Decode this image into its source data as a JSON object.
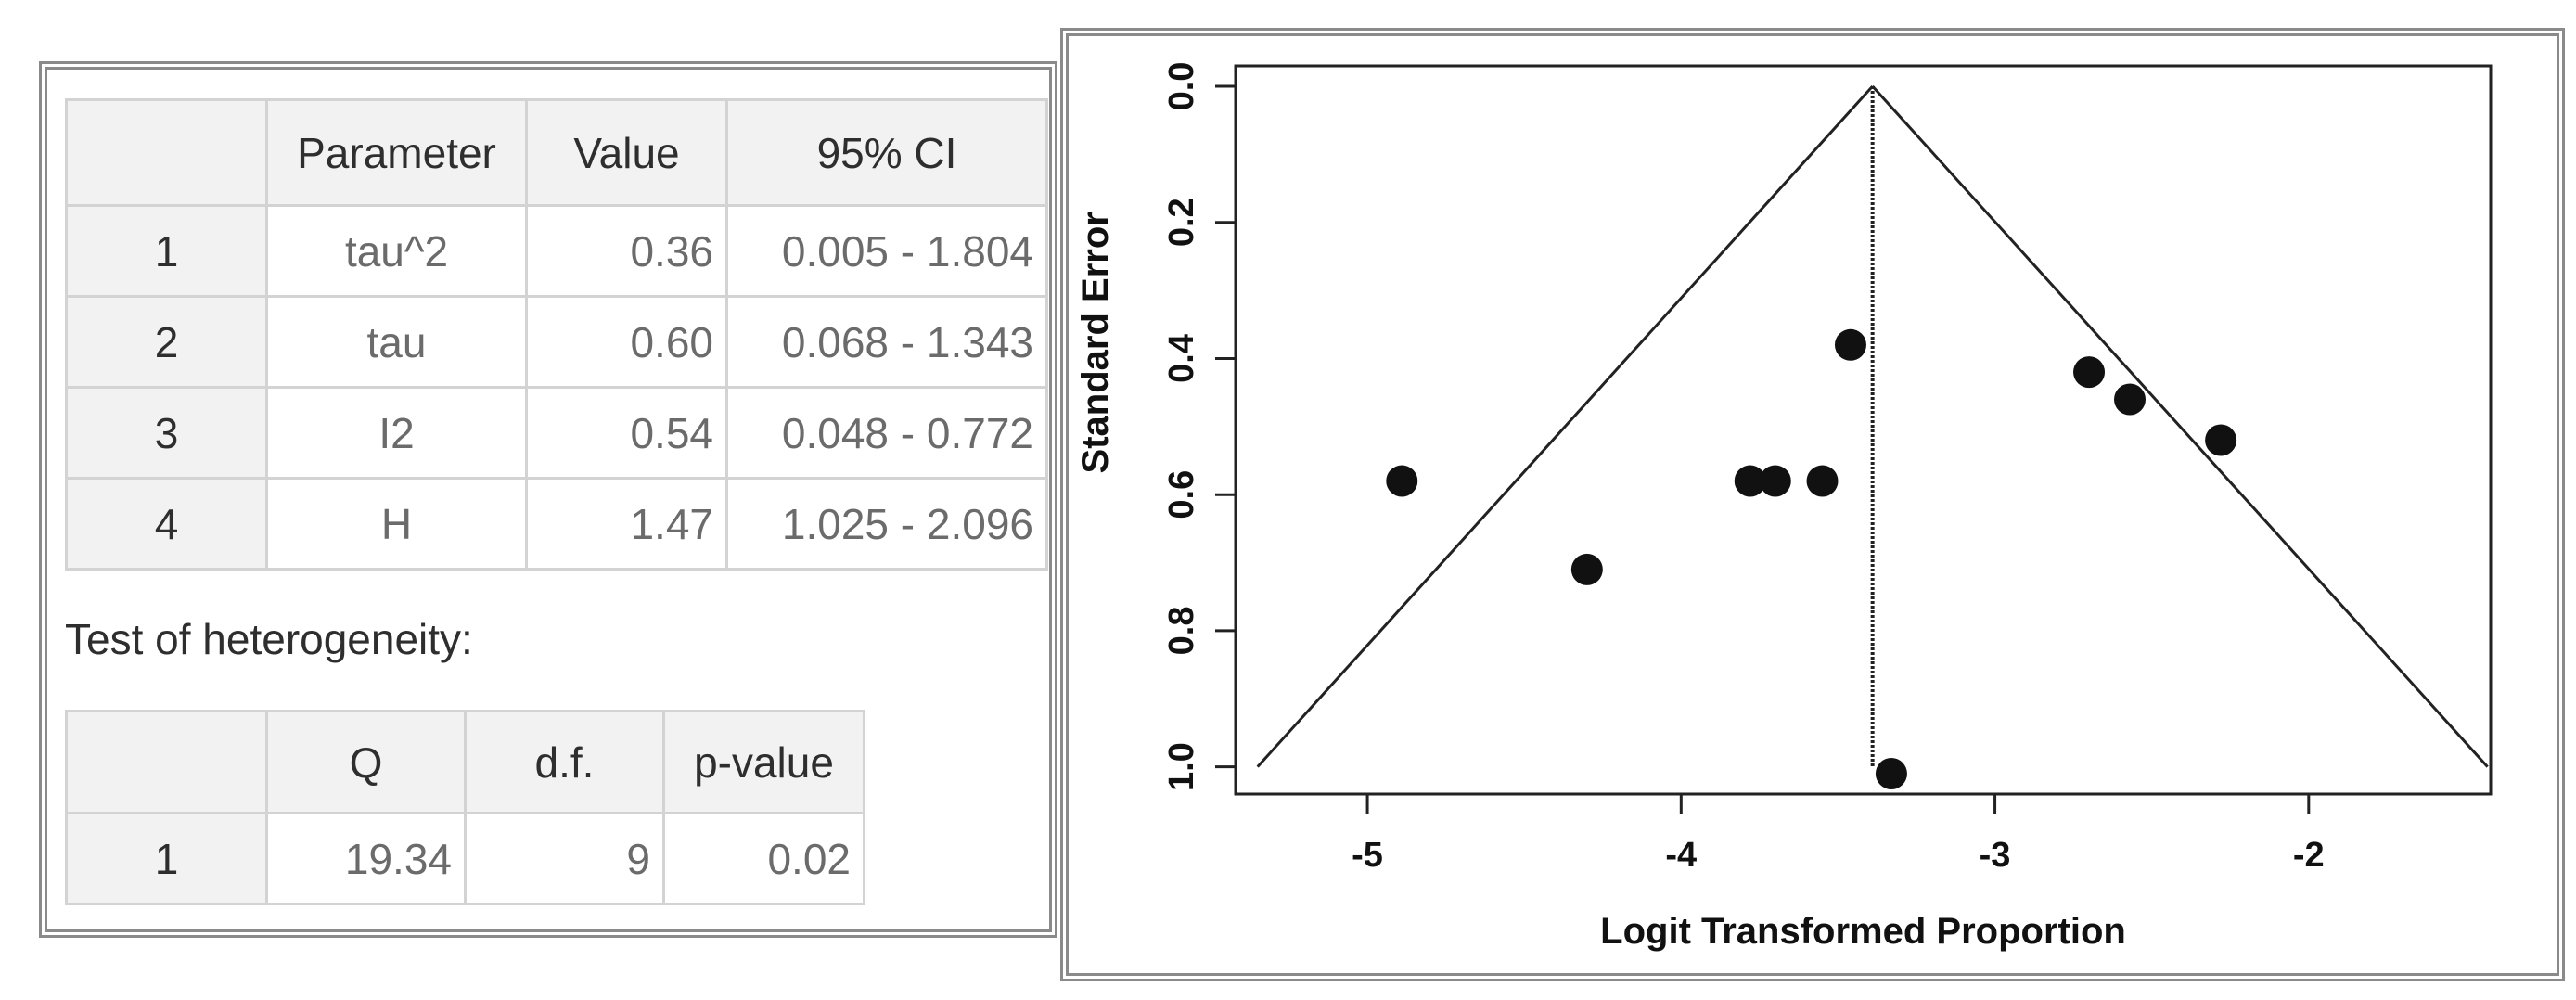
{
  "param_table": {
    "headers": [
      "",
      "Parameter",
      "Value",
      "95% CI"
    ],
    "rows": [
      {
        "n": "1",
        "parameter": "tau^2",
        "value": "0.36",
        "ci": "0.005 - 1.804"
      },
      {
        "n": "2",
        "parameter": "tau",
        "value": "0.60",
        "ci": "0.068 - 1.343"
      },
      {
        "n": "3",
        "parameter": "I2",
        "value": "0.54",
        "ci": "0.048 - 0.772"
      },
      {
        "n": "4",
        "parameter": "H",
        "value": "1.47",
        "ci": "1.025 - 2.096"
      }
    ]
  },
  "heterogeneity": {
    "label": "Test of heterogeneity:",
    "headers": [
      "",
      "Q",
      "d.f.",
      "p-value"
    ],
    "rows": [
      {
        "n": "1",
        "q": "19.34",
        "df": "9",
        "p": "0.02"
      }
    ]
  },
  "chart_data": {
    "type": "scatter",
    "title": "",
    "xlabel": "Logit Transformed Proportion",
    "ylabel": "Standard Error",
    "xlim": [
      -5.42,
      -1.42
    ],
    "ylim": [
      1.04,
      -0.03
    ],
    "x_ticks": [
      -5,
      -4,
      -3,
      -2
    ],
    "x_tick_labels": [
      "-5",
      "-4",
      "-3",
      "-2"
    ],
    "y_ticks": [
      0.0,
      0.2,
      0.4,
      0.6,
      0.8,
      1.0
    ],
    "y_tick_labels": [
      "0.0",
      "0.2",
      "0.4",
      "0.6",
      "0.8",
      "1.0"
    ],
    "grid": false,
    "pooled_estimate": -3.39,
    "funnel_max_se": 1.0,
    "points": [
      {
        "x": -4.89,
        "y": 0.58
      },
      {
        "x": -4.3,
        "y": 0.71
      },
      {
        "x": -3.78,
        "y": 0.58
      },
      {
        "x": -3.7,
        "y": 0.58
      },
      {
        "x": -3.55,
        "y": 0.58
      },
      {
        "x": -3.46,
        "y": 0.38
      },
      {
        "x": -3.33,
        "y": 1.01
      },
      {
        "x": -2.7,
        "y": 0.42
      },
      {
        "x": -2.57,
        "y": 0.46
      },
      {
        "x": -2.28,
        "y": 0.52
      }
    ]
  }
}
